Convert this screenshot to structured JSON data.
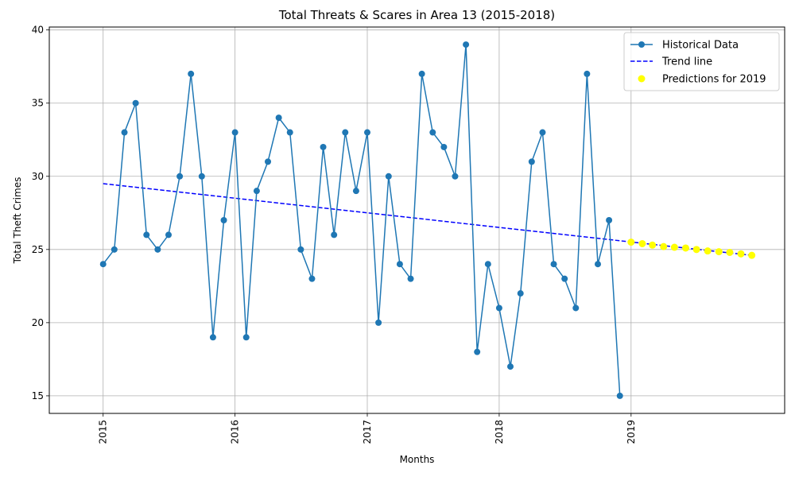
{
  "chart_data": {
    "type": "line",
    "title": "Total Threats & Scares in Area 13 (2015-2018)",
    "xlabel": "Months",
    "ylabel": "Total Theft Crimes",
    "x_tick_labels": [
      "2015",
      "2016",
      "2017",
      "2018",
      "2019"
    ],
    "y_ticks": [
      15,
      20,
      25,
      30,
      35,
      40
    ],
    "ylim": [
      13.8,
      40.2
    ],
    "xlim": [
      "2014-08-05",
      "2020-03-01"
    ],
    "grid": true,
    "legend_position": "top-right",
    "series": [
      {
        "name": "Historical Data",
        "kind": "line-markers",
        "color": "#1f77b4",
        "x": [
          "2015-01",
          "2015-02",
          "2015-03",
          "2015-04",
          "2015-05",
          "2015-06",
          "2015-07",
          "2015-08",
          "2015-09",
          "2015-10",
          "2015-11",
          "2015-12",
          "2016-01",
          "2016-02",
          "2016-03",
          "2016-04",
          "2016-05",
          "2016-06",
          "2016-07",
          "2016-08",
          "2016-09",
          "2016-10",
          "2016-11",
          "2016-12",
          "2017-01",
          "2017-02",
          "2017-03",
          "2017-04",
          "2017-05",
          "2017-06",
          "2017-07",
          "2017-08",
          "2017-09",
          "2017-10",
          "2017-11",
          "2017-12",
          "2018-01",
          "2018-02",
          "2018-03",
          "2018-04",
          "2018-05",
          "2018-06",
          "2018-07",
          "2018-08",
          "2018-09",
          "2018-10",
          "2018-11",
          "2018-12"
        ],
        "values": [
          24,
          25,
          33,
          35,
          26,
          25,
          26,
          30,
          37,
          30,
          19,
          27,
          33,
          19,
          29,
          31,
          34,
          33,
          25,
          23,
          32,
          26,
          33,
          29,
          33,
          20,
          30,
          24,
          23,
          37,
          33,
          32,
          30,
          39,
          18,
          24,
          21,
          17,
          22,
          31,
          33,
          24,
          23,
          21,
          37,
          24,
          27,
          15
        ]
      },
      {
        "name": "Trend line",
        "kind": "dashed-line",
        "color": "#0000ff",
        "x": [
          "2015-01",
          "2019-12"
        ],
        "values": [
          29.5,
          24.6
        ]
      },
      {
        "name": "Predictions for 2019",
        "kind": "scatter",
        "color": "#ffff00",
        "x": [
          "2019-01",
          "2019-02",
          "2019-03",
          "2019-04",
          "2019-05",
          "2019-06",
          "2019-07",
          "2019-08",
          "2019-09",
          "2019-10",
          "2019-11",
          "2019-12"
        ],
        "values": [
          25.5,
          25.4,
          25.3,
          25.2,
          25.15,
          25.1,
          25.0,
          24.9,
          24.85,
          24.8,
          24.7,
          24.6
        ]
      }
    ]
  }
}
